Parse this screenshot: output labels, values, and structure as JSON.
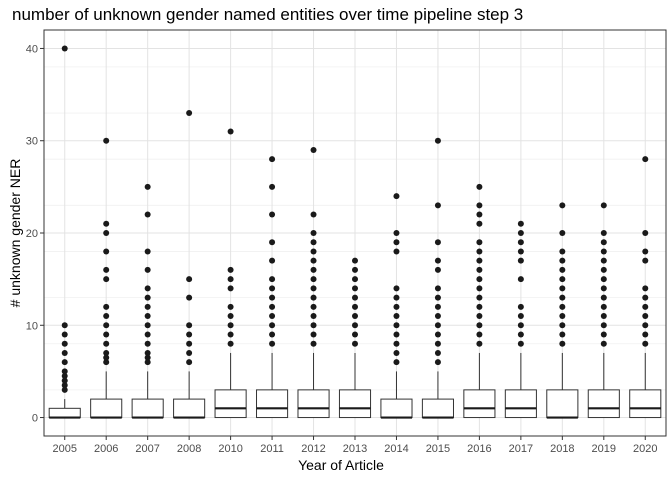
{
  "chart_data": {
    "type": "boxplot",
    "title": "number of unknown gender named entities over time pipeline step 3",
    "xlabel": "Year of Article",
    "ylabel": "# unknown gender NER",
    "ylim": [
      -2,
      42
    ],
    "yticks": [
      0,
      10,
      20,
      30,
      40
    ],
    "grid": true,
    "categories": [
      "2005",
      "2006",
      "2007",
      "2008",
      "2010",
      "2011",
      "2012",
      "2013",
      "2014",
      "2015",
      "2016",
      "2017",
      "2018",
      "2019",
      "2020"
    ],
    "boxes": [
      {
        "year": "2005",
        "q1": 0,
        "median": 0,
        "q3": 1,
        "whisker_low": 0,
        "whisker_high": 2,
        "outliers": [
          3,
          3.5,
          4,
          4.5,
          5,
          6,
          7,
          8,
          9,
          10,
          40
        ]
      },
      {
        "year": "2006",
        "q1": 0,
        "median": 0,
        "q3": 2,
        "whisker_low": 0,
        "whisker_high": 5,
        "outliers": [
          6,
          6.5,
          7,
          8,
          9,
          10,
          11,
          12,
          15,
          16,
          18,
          20,
          21,
          30
        ]
      },
      {
        "year": "2007",
        "q1": 0,
        "median": 0,
        "q3": 2,
        "whisker_low": 0,
        "whisker_high": 5,
        "outliers": [
          6,
          6.5,
          7,
          8,
          9,
          10,
          11,
          12,
          13,
          14,
          16,
          18,
          22,
          25
        ]
      },
      {
        "year": "2008",
        "q1": 0,
        "median": 0,
        "q3": 2,
        "whisker_low": 0,
        "whisker_high": 5,
        "outliers": [
          6,
          7,
          8,
          9,
          10,
          13,
          15,
          33
        ]
      },
      {
        "year": "2010",
        "q1": 0,
        "median": 1,
        "q3": 3,
        "whisker_low": 0,
        "whisker_high": 7,
        "outliers": [
          8,
          9,
          10,
          11,
          12,
          14,
          15,
          16,
          31
        ]
      },
      {
        "year": "2011",
        "q1": 0,
        "median": 1,
        "q3": 3,
        "whisker_low": 0,
        "whisker_high": 7,
        "outliers": [
          8,
          9,
          10,
          11,
          12,
          13,
          14,
          15,
          17,
          19,
          22,
          25,
          28
        ]
      },
      {
        "year": "2012",
        "q1": 0,
        "median": 1,
        "q3": 3,
        "whisker_low": 0,
        "whisker_high": 7,
        "outliers": [
          8,
          9,
          10,
          11,
          12,
          13,
          14,
          15,
          16,
          17,
          18,
          19,
          20,
          22,
          29
        ]
      },
      {
        "year": "2013",
        "q1": 0,
        "median": 1,
        "q3": 3,
        "whisker_low": 0,
        "whisker_high": 7,
        "outliers": [
          8,
          9,
          10,
          11,
          12,
          13,
          14,
          15,
          16,
          17
        ]
      },
      {
        "year": "2014",
        "q1": 0,
        "median": 0,
        "q3": 2,
        "whisker_low": 0,
        "whisker_high": 5,
        "outliers": [
          6,
          7,
          8,
          9,
          10,
          11,
          12,
          13,
          14,
          18,
          19,
          20,
          24
        ]
      },
      {
        "year": "2015",
        "q1": 0,
        "median": 0,
        "q3": 2,
        "whisker_low": 0,
        "whisker_high": 5,
        "outliers": [
          6,
          7,
          8,
          9,
          10,
          11,
          12,
          13,
          14,
          16,
          17,
          19,
          23,
          30
        ]
      },
      {
        "year": "2016",
        "q1": 0,
        "median": 1,
        "q3": 3,
        "whisker_low": 0,
        "whisker_high": 7,
        "outliers": [
          8,
          9,
          10,
          11,
          12,
          13,
          14,
          15,
          16,
          17,
          18,
          19,
          21,
          22,
          23,
          25
        ]
      },
      {
        "year": "2017",
        "q1": 0,
        "median": 1,
        "q3": 3,
        "whisker_low": 0,
        "whisker_high": 7,
        "outliers": [
          8,
          9,
          10,
          11,
          12,
          15,
          17,
          18,
          19,
          20,
          21
        ]
      },
      {
        "year": "2018",
        "q1": 0,
        "median": 0,
        "q3": 3,
        "whisker_low": 0,
        "whisker_high": 7,
        "outliers": [
          8,
          9,
          10,
          11,
          12,
          13,
          14,
          15,
          16,
          17,
          18,
          20,
          23
        ]
      },
      {
        "year": "2019",
        "q1": 0,
        "median": 1,
        "q3": 3,
        "whisker_low": 0,
        "whisker_high": 7,
        "outliers": [
          8,
          9,
          10,
          11,
          12,
          13,
          14,
          15,
          16,
          17,
          18,
          19,
          20,
          23
        ]
      },
      {
        "year": "2020",
        "q1": 0,
        "median": 1,
        "q3": 3,
        "whisker_low": 0,
        "whisker_high": 7,
        "outliers": [
          8,
          9,
          10,
          11,
          12,
          13,
          14,
          17,
          18,
          20,
          28
        ]
      }
    ]
  }
}
